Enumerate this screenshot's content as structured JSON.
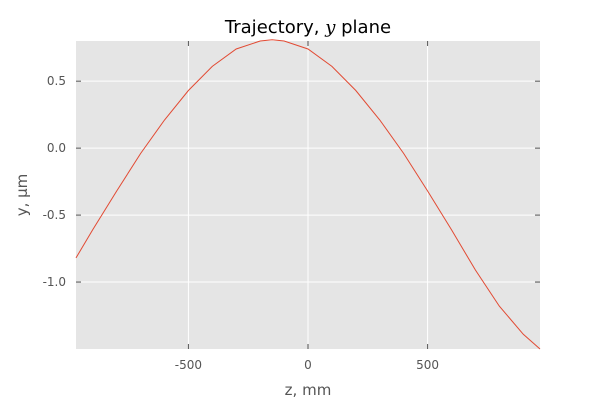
{
  "chart_data": {
    "type": "line",
    "title_prefix": "Trajectory, ",
    "title_symbol": "y",
    "title_suffix": " plane",
    "xlabel": "z, mm",
    "ylabel": "y, µm",
    "xlim": [
      -970,
      970
    ],
    "ylim": [
      -1.5,
      0.8
    ],
    "x_ticks": [
      -500,
      0,
      500
    ],
    "x_tick_labels": [
      "-500",
      "0",
      "500"
    ],
    "y_ticks": [
      0.5,
      0.0,
      -0.5,
      -1.0
    ],
    "y_tick_labels": [
      "0.5",
      "0.0",
      "-0.5",
      "-1.0"
    ],
    "grid": true,
    "colors": {
      "background": "#e5e5e5",
      "grid": "#ffffff",
      "line": "#e24a33",
      "tick": "#555555"
    },
    "series": [
      {
        "x": [
          -970,
          -900,
          -800,
          -700,
          -600,
          -500,
          -400,
          -300,
          -200,
          -150,
          -100,
          0,
          100,
          200,
          300,
          400,
          500,
          600,
          700,
          800,
          900,
          970
        ],
        "values": [
          -0.82,
          -0.61,
          -0.32,
          -0.04,
          0.21,
          0.43,
          0.61,
          0.74,
          0.8,
          0.81,
          0.8,
          0.74,
          0.61,
          0.43,
          0.21,
          -0.04,
          -0.32,
          -0.61,
          -0.91,
          -1.18,
          -1.39,
          -1.5
        ]
      }
    ]
  }
}
